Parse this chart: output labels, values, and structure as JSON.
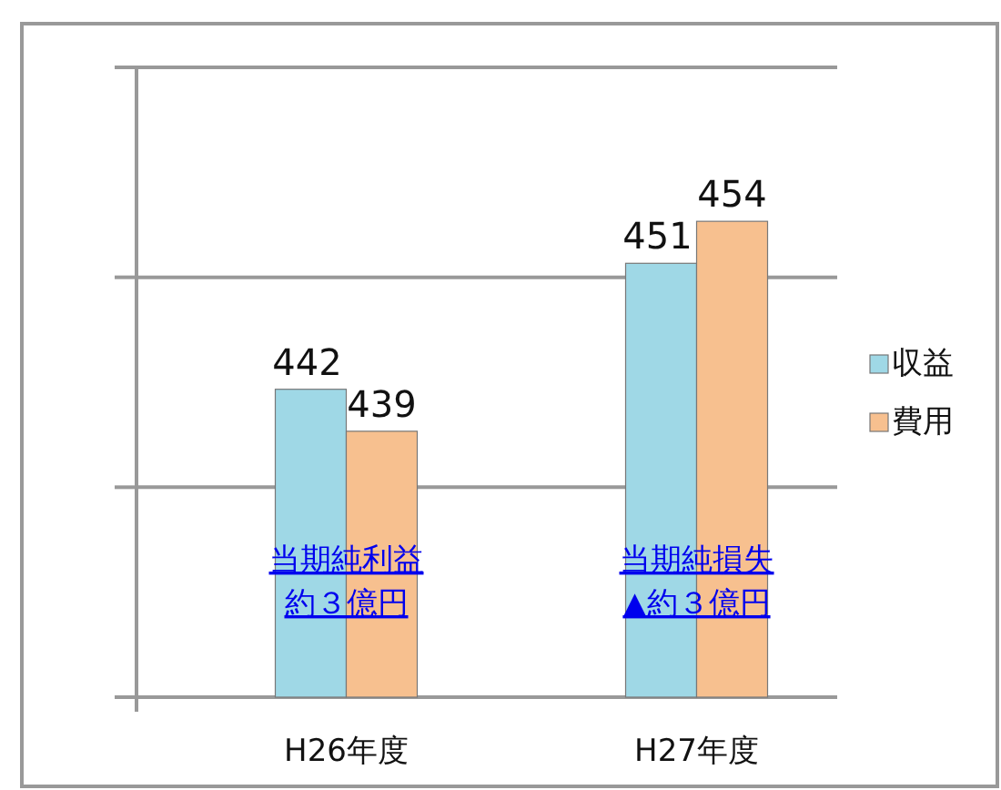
{
  "chart_data": {
    "type": "bar",
    "categories": [
      "H26年度",
      "H27年度"
    ],
    "series": [
      {
        "name": "収益",
        "color": "#9fd8e6",
        "values": [
          442,
          451
        ]
      },
      {
        "name": "費用",
        "color": "#f7c08f",
        "values": [
          439,
          454
        ]
      }
    ],
    "ylim": [
      420,
      465
    ],
    "yticks": [
      {
        "value": 420,
        "label": null
      },
      {
        "value": 435,
        "label": null
      },
      {
        "value": 450,
        "label": null
      },
      {
        "value": 465,
        "label": null
      }
    ],
    "grid": "y",
    "legend": "right",
    "data_labels": true,
    "tick_labels": "x",
    "annotations": [
      "当期純利益",
      "約３億円",
      "当期純損失",
      "▲約３億円"
    ]
  }
}
